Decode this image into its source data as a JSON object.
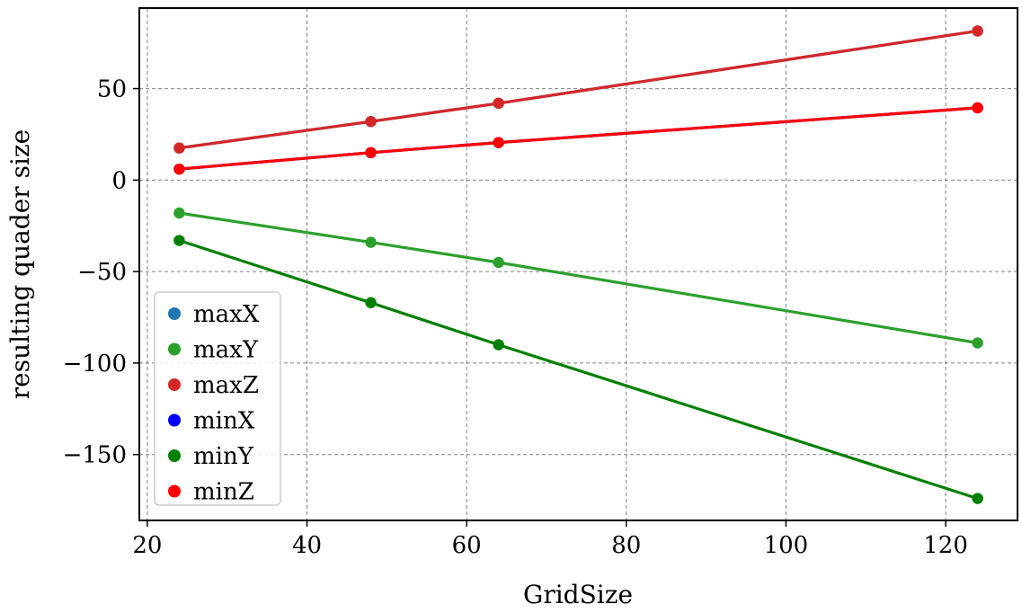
{
  "chart_data": {
    "type": "line",
    "title": "",
    "xlabel": "GridSize",
    "ylabel": "resulting quader size",
    "xlim": [
      19,
      129
    ],
    "ylim": [
      -186,
      94
    ],
    "xticks": [
      20,
      40,
      60,
      80,
      100,
      120
    ],
    "yticks": [
      50,
      0,
      -50,
      -100,
      -150
    ],
    "xtick_labels": [
      "20",
      "40",
      "60",
      "80",
      "100",
      "120"
    ],
    "ytick_labels": [
      "50",
      "0",
      "−50",
      "−100",
      "−150"
    ],
    "grid": true,
    "legend_position": "lower-left",
    "x": [
      24,
      48,
      64,
      124
    ],
    "series": [
      {
        "name": "maxX",
        "color": "#1f77b4",
        "values": [
          17.5,
          32,
          42,
          81.5
        ]
      },
      {
        "name": "maxY",
        "color": "#2ca02c",
        "values": [
          -18,
          -34,
          -45,
          -89
        ]
      },
      {
        "name": "maxZ",
        "color": "#d62728",
        "values": [
          17.5,
          32,
          42,
          81.5
        ]
      },
      {
        "name": "minX",
        "color": "#0000ff",
        "values": [
          6,
          15,
          20.5,
          39.5
        ]
      },
      {
        "name": "minY",
        "color": "#008000",
        "values": [
          -33,
          -67,
          -90,
          -174
        ]
      },
      {
        "name": "minZ",
        "color": "#ff0000",
        "values": [
          6,
          15,
          20.5,
          39.5
        ]
      }
    ]
  }
}
